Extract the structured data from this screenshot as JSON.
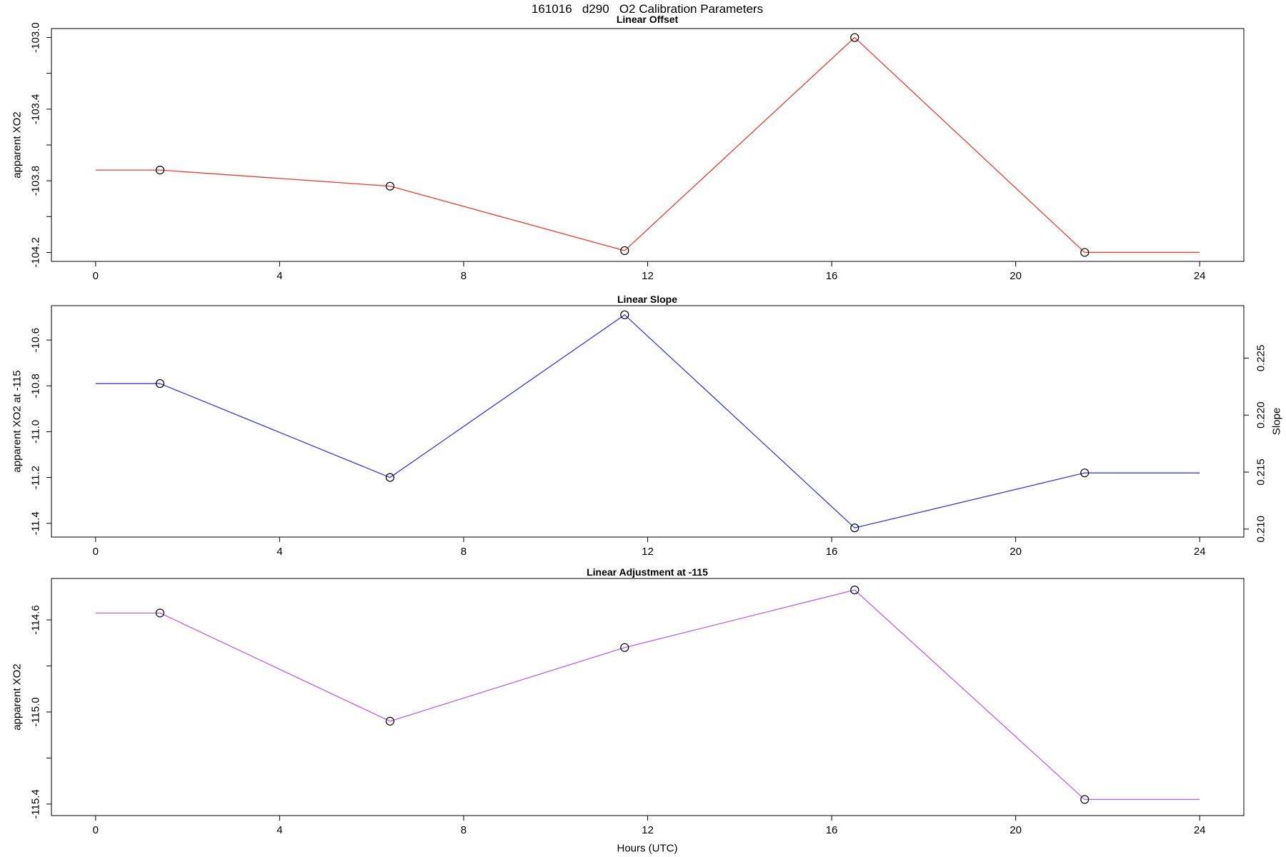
{
  "title": "161016   d290   O2 Calibration Parameters",
  "xlabel": "Hours (UTC)",
  "point_marker": "open-circle",
  "marker_color": "#000000",
  "chart_data": [
    {
      "type": "line",
      "title": "Linear Offset",
      "ylabel": "apparent XO2",
      "color": "#ee3b33",
      "x": [
        1.4,
        6.4,
        11.5,
        16.5,
        21.5
      ],
      "y": [
        -103.74,
        -103.83,
        -104.19,
        -103.0,
        -104.2
      ],
      "line_x": [
        0,
        1.4,
        6.4,
        11.5,
        16.5,
        21.5,
        24
      ],
      "line_y": [
        -103.74,
        -103.74,
        -103.83,
        -104.19,
        -103.0,
        -104.2,
        -104.2
      ],
      "xlim": [
        -0.96,
        24.96
      ],
      "ylim": [
        -104.25,
        -102.95
      ],
      "xticks": [
        0,
        4,
        8,
        12,
        16,
        20,
        24
      ],
      "xtick_labels": [
        "0",
        "4",
        "8",
        "12",
        "16",
        "20",
        "24"
      ],
      "yticks": [
        -103.0,
        -103.2,
        -103.4,
        -103.6,
        -103.8,
        -104.0,
        -104.2
      ],
      "ytick_labels": [
        "-103.0",
        "",
        "-103.4",
        "",
        "-103.8",
        "",
        "-104.2"
      ],
      "grid": false
    },
    {
      "type": "line",
      "title": "Linear Slope",
      "ylabel": "apparent XO2 at -115",
      "y2label": "Slope",
      "color": "#3c3cdc",
      "x": [
        1.4,
        6.4,
        11.5,
        16.5,
        21.5
      ],
      "y": [
        -10.79,
        -11.2,
        -10.49,
        -11.42,
        -11.18
      ],
      "line_x": [
        0,
        1.4,
        6.4,
        11.5,
        16.5,
        21.5,
        24
      ],
      "line_y": [
        -10.79,
        -10.79,
        -11.2,
        -10.49,
        -11.42,
        -11.18,
        -11.18
      ],
      "xlim": [
        -0.96,
        24.96
      ],
      "ylim": [
        -11.46,
        -10.45
      ],
      "xticks": [
        0,
        4,
        8,
        12,
        16,
        20,
        24
      ],
      "xtick_labels": [
        "0",
        "4",
        "8",
        "12",
        "16",
        "20",
        "24"
      ],
      "yticks": [
        -10.6,
        -10.8,
        -11.0,
        -11.2,
        -11.4
      ],
      "ytick_labels": [
        "-10.6",
        "-10.8",
        "-11.0",
        "-11.2",
        "-11.4"
      ],
      "y2lim": [
        0.2093,
        0.2296
      ],
      "y2ticks": [
        0.225,
        0.22,
        0.215,
        0.21
      ],
      "y2tick_labels": [
        "0.225",
        "0.220",
        "0.215",
        "0.210"
      ],
      "grid": false
    },
    {
      "type": "line",
      "title": "Linear Adjustment at -115",
      "ylabel": "apparent XO2",
      "color": "#b564e6",
      "x": [
        1.4,
        6.4,
        11.5,
        16.5,
        21.5
      ],
      "y": [
        -114.57,
        -115.04,
        -114.72,
        -114.47,
        -115.38
      ],
      "line_x": [
        0,
        1.4,
        6.4,
        11.5,
        16.5,
        21.5,
        24
      ],
      "line_y": [
        -114.57,
        -114.57,
        -115.04,
        -114.72,
        -114.47,
        -115.38,
        -115.38
      ],
      "xlim": [
        -0.96,
        24.96
      ],
      "ylim": [
        -115.45,
        -114.42
      ],
      "xticks": [
        0,
        4,
        8,
        12,
        16,
        20,
        24
      ],
      "xtick_labels": [
        "0",
        "4",
        "8",
        "12",
        "16",
        "20",
        "24"
      ],
      "yticks": [
        -114.6,
        -114.8,
        -115.0,
        -115.2,
        -115.4
      ],
      "ytick_labels": [
        "-114.6",
        "",
        "-115.0",
        "",
        "-115.4"
      ],
      "grid": false
    }
  ]
}
